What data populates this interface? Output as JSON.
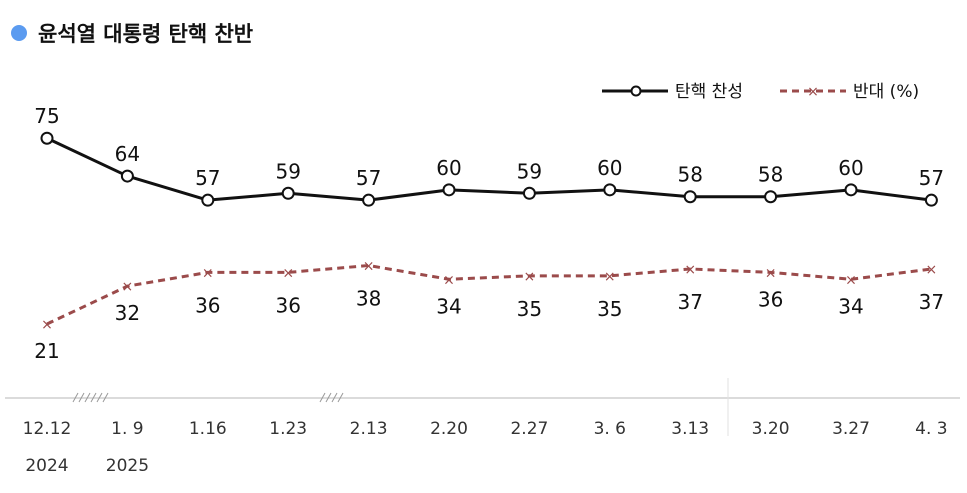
{
  "title": "윤석열 대통령 탄핵 찬반",
  "colors": {
    "title_dot": "#5b9bf0",
    "approve_line": "#111111",
    "oppose_line": "#9b4b4b",
    "axis": "#cfcfcf"
  },
  "chart_data": {
    "type": "line",
    "title": "윤석열 대통령 탄핵 찬반",
    "categories": [
      "12.12",
      "1. 9",
      "1.16",
      "1.23",
      "2.13",
      "2.20",
      "2.27",
      "3. 6",
      "3.13",
      "3.20",
      "3.27",
      "4. 3"
    ],
    "year_labels": [
      "2024",
      "2025"
    ],
    "series": [
      {
        "name": "탄핵 찬성",
        "values": [
          75,
          64,
          57,
          59,
          57,
          60,
          59,
          60,
          58,
          58,
          60,
          57
        ]
      },
      {
        "name": "반대 (%)",
        "values": [
          21,
          32,
          36,
          36,
          38,
          34,
          35,
          35,
          37,
          36,
          34,
          37
        ]
      }
    ],
    "xlabel": "",
    "ylabel": "",
    "ylim": [
      0,
      100
    ],
    "grid": false,
    "legend_position": "top-right"
  }
}
